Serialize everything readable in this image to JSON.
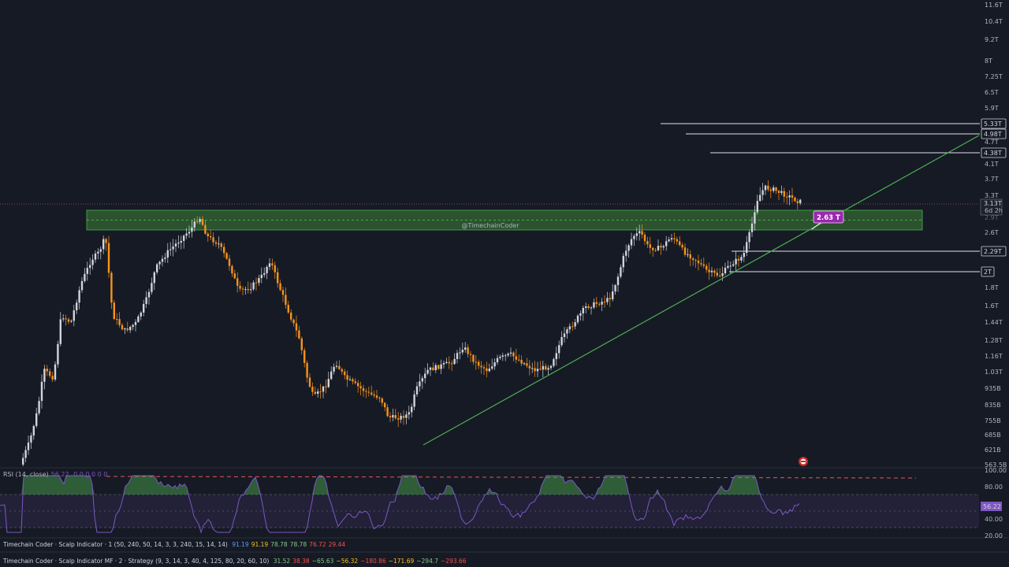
{
  "chart_data": {
    "type": "candlestick",
    "price_axis": {
      "scale": "log",
      "ticks": [
        "11.6T",
        "10.4T",
        "9.2T",
        "8T",
        "7.25T",
        "6.5T",
        "5.9T",
        "4.7T",
        "4.1T",
        "3.7T",
        "3.3T",
        "2.6T",
        "1.8T",
        "1.6T",
        "1.44T",
        "1.28T",
        "1.16T",
        "1.03T",
        "935B",
        "835B",
        "755B",
        "685B",
        "621B",
        "563.5B"
      ]
    },
    "price_tags": [
      {
        "label": "5.33T"
      },
      {
        "label": "4.98T"
      },
      {
        "label": "4.38T"
      },
      {
        "label": "2.29T"
      },
      {
        "label": "2T"
      }
    ],
    "current_price": {
      "value": "3.13T",
      "countdown": "6d 2h",
      "hidden_label": "2.9T"
    },
    "callout": {
      "label": "2.63 T"
    },
    "watermark": "@TimechainCoder",
    "colors": {
      "up": "#d1d4dc",
      "down": "#f7931a",
      "zone": "#2f5e30",
      "trendline": "#4caf50",
      "callout": "#9c27b0",
      "rsi_line": "#7e57c2"
    }
  },
  "rsi": {
    "legend_name": "RSI (14, close)",
    "legend_value": "56.22",
    "legend_extra": "0 0 0 0 0 0",
    "axis_ticks": [
      "100.00",
      "80.00",
      "40.00",
      "20.00"
    ],
    "current_value": "56.22"
  },
  "indicators": [
    {
      "name": "Timechain Coder · Scalp Indicator · 1 (50, 240, 50, 14, 3, 3, 240, 15, 14, 14)",
      "values": [
        {
          "v": "91.19",
          "color": "#5b9cf6"
        },
        {
          "v": "91.19",
          "color": "#f7c325"
        },
        {
          "v": "78.78",
          "color": "#81c784"
        },
        {
          "v": "78.78",
          "color": "#81c784"
        },
        {
          "v": "76.72",
          "color": "#ef5350"
        },
        {
          "v": "29.44",
          "color": "#ef5350"
        }
      ]
    },
    {
      "name": "Timechain Coder · Scalp Indicator MF · 2 · Strategy (9, 3, 14, 3, 40, 4, 125, 80, 20, 60, 10)",
      "values": [
        {
          "v": "31.52",
          "color": "#81c784"
        },
        {
          "v": "38.38",
          "color": "#ef5350"
        },
        {
          "v": "−65.63",
          "color": "#81c784"
        },
        {
          "v": "−56.32",
          "color": "#f7c325"
        },
        {
          "v": "−180.86",
          "color": "#ef5350"
        },
        {
          "v": "−171.69",
          "color": "#f7c325"
        },
        {
          "v": "−294.7",
          "color": "#81c784"
        },
        {
          "v": "−293.66",
          "color": "#ef5350"
        }
      ]
    }
  ]
}
